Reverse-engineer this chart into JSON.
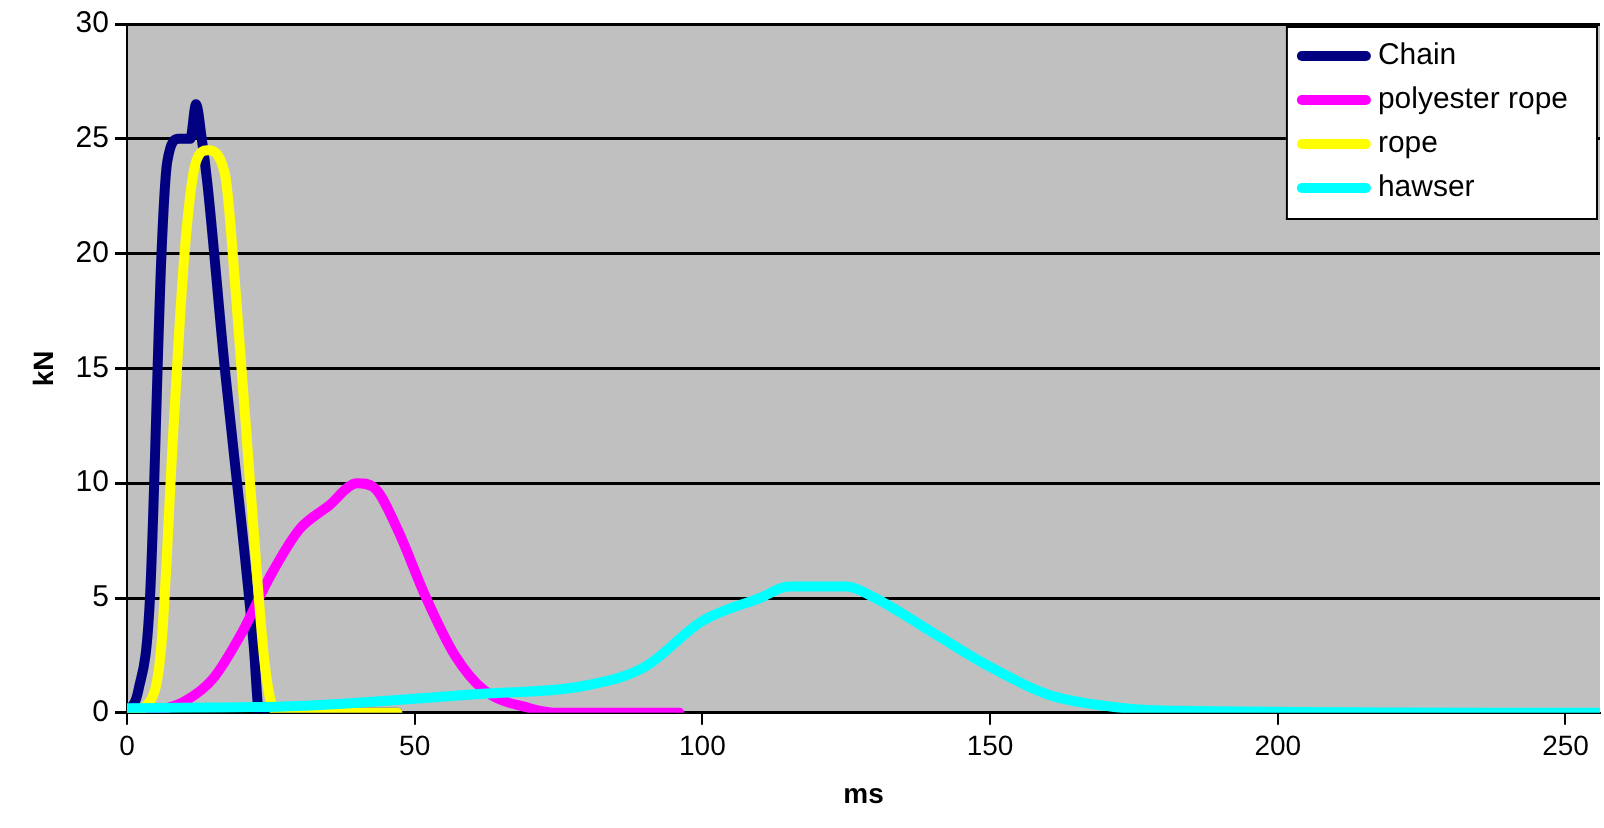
{
  "chart_data": {
    "type": "line",
    "xlabel": "ms",
    "ylabel": "kN",
    "xlim": [
      0,
      256
    ],
    "xticks": [
      0,
      50,
      100,
      150,
      200,
      250
    ],
    "ylim": [
      0,
      30
    ],
    "yticks": [
      0,
      5,
      10,
      15,
      20,
      25,
      30
    ],
    "grid": "y",
    "legend": "top right",
    "marker": "none",
    "line_style": "solid",
    "series": [
      {
        "name": "Chain",
        "color": "#000080",
        "x": [
          0,
          2,
          4,
          6,
          7,
          9,
          11,
          12,
          13,
          14,
          17,
          20,
          22,
          23,
          47
        ],
        "values": [
          0,
          1,
          5,
          20,
          24,
          25,
          25,
          26.5,
          25,
          23,
          15,
          8,
          3,
          0,
          0
        ]
      },
      {
        "name": "polyester rope",
        "color": "#ff00ff",
        "x": [
          4,
          10,
          15,
          20,
          25,
          30,
          35,
          40,
          43,
          47,
          52,
          57,
          62,
          70,
          75,
          96
        ],
        "values": [
          0,
          0.5,
          1.5,
          3.5,
          6,
          8,
          9,
          10,
          9.8,
          8,
          5,
          2.5,
          1,
          0.2,
          0,
          0
        ]
      },
      {
        "name": "rope",
        "color": "#ffff00",
        "x": [
          0,
          4,
          6,
          8,
          10,
          12,
          14,
          17,
          19,
          22,
          24,
          26,
          47
        ],
        "values": [
          0,
          0.5,
          3,
          12,
          20,
          24,
          24.5,
          23.5,
          18,
          8,
          2,
          0,
          0
        ]
      },
      {
        "name": "hawser",
        "color": "#00ffff",
        "x": [
          0,
          30,
          60,
          80,
          90,
          100,
          110,
          115,
          125,
          130,
          140,
          150,
          160,
          170,
          180,
          256
        ],
        "values": [
          0.2,
          0.3,
          0.8,
          1.2,
          2,
          4,
          5,
          5.5,
          5.5,
          5,
          3.5,
          2,
          0.8,
          0.3,
          0.1,
          0
        ]
      }
    ]
  }
}
